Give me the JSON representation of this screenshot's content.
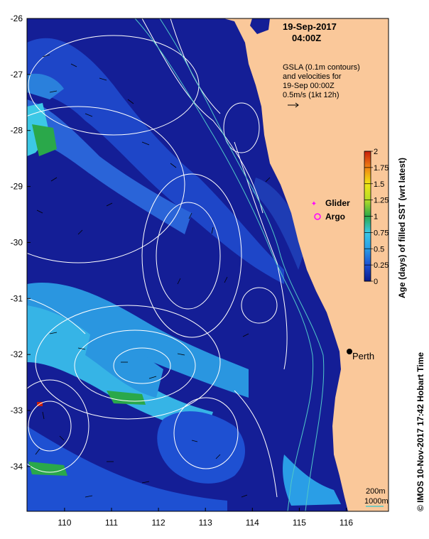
{
  "map": {
    "timestamp_date": "19-Sep-2017",
    "timestamp_time": "04:00Z",
    "annotation_lines": [
      "GSLA (0.1m contours)",
      "and velocities for",
      "19-Sep 00:00Z",
      "0.5m/s (1kt 12h)"
    ],
    "lon_ticks": [
      "110",
      "111",
      "112",
      "113",
      "114",
      "115",
      "116"
    ],
    "lat_ticks": [
      "-26",
      "-27",
      "-28",
      "-29",
      "-30",
      "-31",
      "-32",
      "-33",
      "-34"
    ],
    "lon_range": [
      109.2,
      116.9
    ],
    "lat_range": [
      -34.8,
      -26.0
    ],
    "legend": {
      "glider": "Glider",
      "argo": "Argo",
      "glider_color": "#ff00ff",
      "argo_color": "#ff00ff"
    },
    "city": {
      "name": "Perth",
      "lon": 115.86,
      "lat": -31.95
    },
    "depth_contours": [
      "200m",
      "1000m"
    ],
    "colorbar": {
      "title": "Age (days) of filled SST (wrt latest)",
      "ticks": [
        "0",
        "0.25",
        "0.5",
        "0.75",
        "1",
        "1.25",
        "1.5",
        "1.75",
        "2"
      ],
      "colors": [
        "#0a1a8c",
        "#1e50d2",
        "#2a9ee6",
        "#3cc8e6",
        "#2aa84a",
        "#b4dc28",
        "#f0e614",
        "#f08214",
        "#c81e0a"
      ]
    },
    "footer": "© IMOS 10-Nov-2017 17:42 Hobart Time",
    "colors": {
      "land": "#fac89a",
      "ocean_deep": "#141e96",
      "contour": "#ffffff",
      "isobath": "#50c8c8"
    }
  }
}
